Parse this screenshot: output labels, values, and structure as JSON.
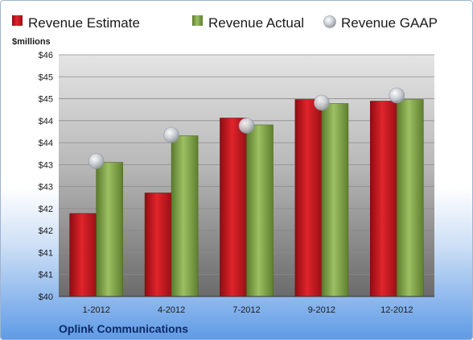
{
  "chart_data": {
    "type": "bar",
    "title": "",
    "unit_label": "$millions",
    "footer": "Oplink Communications",
    "categories": [
      "1-2012",
      "4-2012",
      "7-2012",
      "9-2012",
      "12-2012"
    ],
    "ylim": [
      40,
      46
    ],
    "yticks": [
      "$40",
      "$41",
      "$41",
      "$42",
      "$42",
      "$43",
      "$43",
      "$44",
      "$44",
      "$45",
      "$45",
      "$46"
    ],
    "grid": true,
    "legend": "top",
    "series": [
      {
        "name": "Revenue Estimate",
        "kind": "bar",
        "color": "#c0141b",
        "values": [
          42.06,
          42.57,
          44.43,
          44.89,
          44.85
        ]
      },
      {
        "name": "Revenue Actual",
        "kind": "bar",
        "color": "#82a14b",
        "values": [
          43.33,
          43.99,
          44.26,
          44.79,
          44.89
        ]
      },
      {
        "name": "Revenue GAAP",
        "kind": "marker",
        "color": "#c8cdd6",
        "values": [
          43.36,
          44.01,
          44.24,
          44.81,
          44.99
        ]
      }
    ]
  }
}
